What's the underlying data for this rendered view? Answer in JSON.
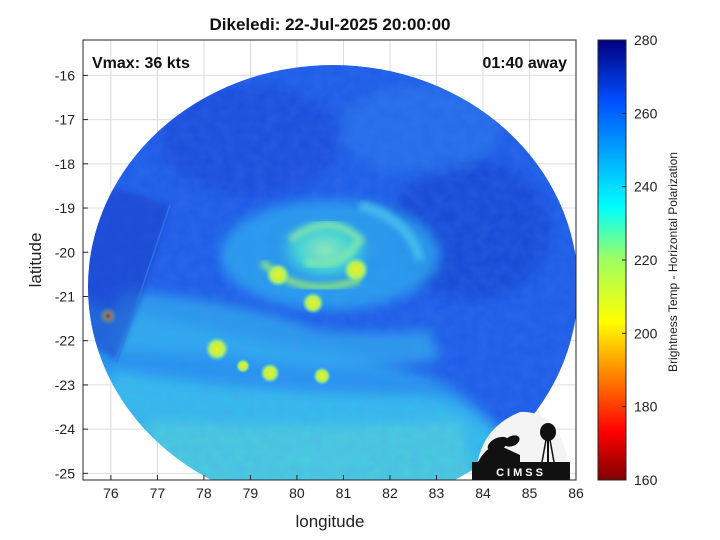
{
  "chart_data": {
    "type": "heatmap",
    "title": "Dikeledi: 22-Jul-2025 20:00:00",
    "xlabel": "longitude",
    "ylabel": "latitude",
    "xlim": [
      75.4,
      86
    ],
    "ylim": [
      -25.15,
      -15.2
    ],
    "xticks": [
      76,
      77,
      78,
      79,
      80,
      81,
      82,
      83,
      84,
      85,
      86
    ],
    "yticks": [
      -16,
      -17,
      -18,
      -19,
      -20,
      -21,
      -22,
      -23,
      -24,
      -25
    ],
    "grid": true,
    "annotations": {
      "vmax": "Vmax: 36 kts",
      "time_offset": "01:40 away"
    },
    "colorbar": {
      "label": "Brightness Temp - Horizontal Polarization",
      "range": [
        160,
        280
      ],
      "ticks": [
        160,
        180,
        200,
        220,
        240,
        260,
        280
      ],
      "colormap": "jet"
    },
    "storm_center": {
      "lon": 80.8,
      "lat": -20.3
    },
    "swath_radius_deg_lat": 4.9,
    "logo": "CIMSS"
  },
  "colors": {
    "background": "#ffffff",
    "grid": "#dcdcdc",
    "swath_base": "#1f5ee8",
    "swath_low": "#2ab8ee",
    "logo_bg": "#111111"
  }
}
